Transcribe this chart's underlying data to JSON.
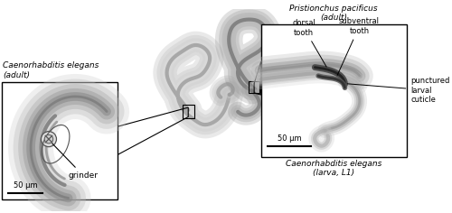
{
  "bg_color": "#ffffff",
  "title_pp": "Pristionchus pacificus\n(adult)",
  "title_ce": "Caenorhabditis elegans\n(adult)",
  "label_grinder": "grinder",
  "label_scale_left": "50 μm",
  "label_scale_right": "50 μm",
  "label_dorsal": "dorsal\ntooth",
  "label_subventral": "subventral\ntooth",
  "label_punctured": "punctured\nlarval\ncuticle",
  "label_larva": "Caenorhabditis elegans\n(larva, L1)",
  "gray_outer": "#bbbbbb",
  "gray_mid": "#999999",
  "gray_dark": "#666666",
  "gray_light": "#dddddd"
}
